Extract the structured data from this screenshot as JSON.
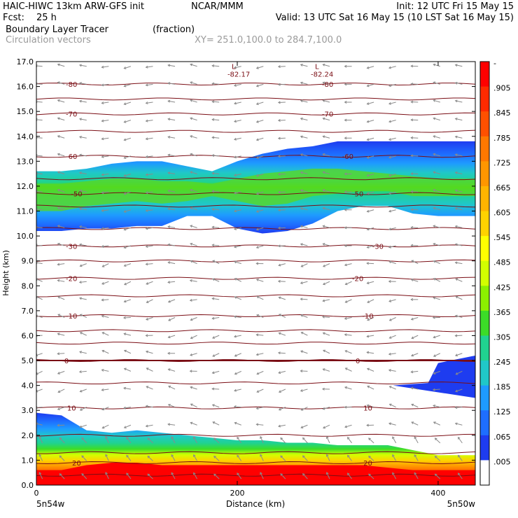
{
  "header": {
    "title": "HAIC-HIWC 13km ARW-GFS init",
    "org": "NCAR/MMM",
    "init": "Init: 12 UTC Fri 15 May 15",
    "fcst_label": "Fcst:",
    "fcst_value": "25 h",
    "valid": "Valid: 13 UTC Sat 16 May 15 (10 LST Sat 16 May 15)",
    "field": "Boundary Layer Tracer",
    "units": "(fraction)",
    "overlay": "Circulation vectors",
    "xy": "XY= 251.0,100.0 to 284.7,100.0"
  },
  "chart_data": {
    "type": "heatmap",
    "ylabel": "Height (km)",
    "xlabel": "Distance (km)",
    "xlim": [
      0,
      437
    ],
    "ylim": [
      0,
      17
    ],
    "x_ticks": [
      0,
      200,
      400
    ],
    "y_ticks": [
      "0.0",
      "1.0",
      "2.0",
      "3.0",
      "4.0",
      "5.0",
      "6.0",
      "7.0",
      "8.0",
      "9.0",
      "10.0",
      "11.0",
      "12.0",
      "13.0",
      "14.0",
      "15.0",
      "16.0",
      "17.0"
    ],
    "endpoint_left": "5n54w",
    "endpoint_right": "5n50w",
    "colorbar": {
      "labels": [
        "-",
        ".905",
        ".845",
        ".785",
        ".725",
        ".665",
        ".605",
        ".545",
        ".485",
        ".425",
        ".365",
        ".305",
        ".245",
        ".185",
        ".125",
        ".065",
        ".005"
      ],
      "colors": [
        "#ff0000",
        "#ff2a00",
        "#ff5000",
        "#ff7800",
        "#ff9600",
        "#ffb400",
        "#ffd200",
        "#ffff00",
        "#d2ff00",
        "#8cf000",
        "#3cdc28",
        "#20d290",
        "#20c8c8",
        "#1e9bff",
        "#1e6eff",
        "#1e3cf0",
        "#ffffff"
      ]
    },
    "tracer_layers": [
      {
        "name": "upper",
        "bottom": [
          10.2,
          10.2,
          10.3,
          10.3,
          10.4,
          10.4,
          10.8,
          10.8,
          10.3,
          10.1,
          10.2,
          10.5,
          11.0,
          11.2,
          11.2,
          10.9,
          10.8,
          10.8
        ],
        "top": [
          12.6,
          12.6,
          12.7,
          12.9,
          13.0,
          13.0,
          12.8,
          12.6,
          13.0,
          13.3,
          13.5,
          13.6,
          13.8,
          13.8,
          13.8,
          13.8,
          13.8,
          13.8
        ],
        "core_bottom": [
          11.0,
          11.0,
          11.2,
          11.3,
          11.4,
          11.3,
          11.4,
          11.6,
          11.4,
          11.2,
          11.3,
          11.6,
          11.7,
          11.8,
          11.8,
          11.6,
          11.6,
          11.6
        ],
        "core_top": [
          12.1,
          12.1,
          12.2,
          12.3,
          12.3,
          12.2,
          12.2,
          12.1,
          12.3,
          12.5,
          12.6,
          12.7,
          12.7,
          12.6,
          12.5,
          12.4,
          12.3,
          12.3
        ]
      },
      {
        "name": "lower",
        "top": [
          2.9,
          2.8,
          2.2,
          2.1,
          2.2,
          2.1,
          2.0,
          1.9,
          1.8,
          1.8,
          1.7,
          1.7,
          1.6,
          1.6,
          1.6,
          1.4,
          1.2,
          1.2
        ],
        "red_top": [
          0.6,
          0.6,
          0.8,
          0.9,
          0.9,
          0.8,
          0.8,
          0.8,
          0.8,
          0.8,
          0.8,
          0.8,
          0.8,
          0.8,
          0.7,
          0.6,
          0.6,
          0.6
        ]
      },
      {
        "name": "right-patch",
        "x_start": 355,
        "bottom_km": 3.5,
        "top_km": 5.2
      }
    ],
    "x_samples": [
      0,
      25,
      50,
      75,
      100,
      125,
      150,
      175,
      200,
      225,
      250,
      275,
      300,
      325,
      350,
      375,
      400,
      437
    ],
    "isotherms": [
      {
        "label": "-80",
        "y": 16.1
      },
      {
        "label": "-70",
        "y": 14.9
      },
      {
        "label": "-60",
        "y": 13.2
      },
      {
        "label": "-50",
        "y": 11.7
      },
      {
        "label": "-30",
        "y": 9.6
      },
      {
        "label": "-20",
        "y": 8.3
      },
      {
        "label": "-10",
        "y": 6.8
      },
      {
        "label": "0",
        "y": 5.0
      },
      {
        "label": "10",
        "y": 3.1
      },
      {
        "label": "20",
        "y": 0.9
      }
    ],
    "extra_isotherm_levels": [
      15.5,
      14.2,
      12.3,
      11.2,
      10.3,
      9.0,
      7.6,
      6.2,
      5.7,
      4.1,
      2.0,
      1.3,
      0.4
    ],
    "lows": [
      {
        "label": "L",
        "value": "-82.17",
        "x": 200
      },
      {
        "label": "L",
        "value": "-82.24",
        "x": 283
      }
    ]
  }
}
